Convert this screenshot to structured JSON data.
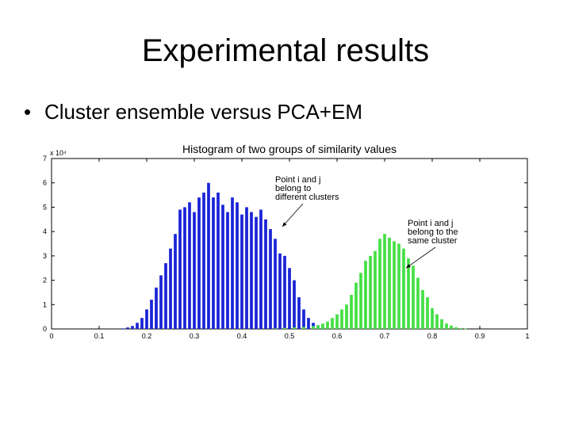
{
  "slide": {
    "title": "Experimental results",
    "bullet": "Cluster ensemble versus PCA+EM"
  },
  "chart_data": {
    "type": "bar",
    "title": "Histogram of two groups of similarity values",
    "xlabel": "",
    "ylabel": "",
    "y_multiplier": "x 10⁴",
    "xlim": [
      0,
      1
    ],
    "ylim": [
      0,
      7
    ],
    "x_ticks": [
      "0",
      "0.1",
      "0.2",
      "0.3",
      "0.4",
      "0.5",
      "0.6",
      "0.7",
      "0.8",
      "0.9",
      "1"
    ],
    "y_ticks": [
      "0",
      "1",
      "2",
      "3",
      "4",
      "5",
      "6",
      "7"
    ],
    "grid": false,
    "bin_width": 0.01,
    "series": [
      {
        "color": "#1a23d6",
        "bins": [
          [
            0.15,
            0.02
          ],
          [
            0.16,
            0.06
          ],
          [
            0.17,
            0.12
          ],
          [
            0.18,
            0.25
          ],
          [
            0.19,
            0.45
          ],
          [
            0.2,
            0.8
          ],
          [
            0.21,
            1.2
          ],
          [
            0.22,
            1.7
          ],
          [
            0.23,
            2.2
          ],
          [
            0.24,
            2.7
          ],
          [
            0.25,
            3.3
          ],
          [
            0.26,
            3.9
          ],
          [
            0.27,
            4.9
          ],
          [
            0.28,
            5.0
          ],
          [
            0.29,
            5.2
          ],
          [
            0.3,
            4.8
          ],
          [
            0.31,
            5.4
          ],
          [
            0.32,
            5.6
          ],
          [
            0.33,
            6.0
          ],
          [
            0.34,
            5.4
          ],
          [
            0.35,
            5.6
          ],
          [
            0.36,
            5.1
          ],
          [
            0.37,
            4.8
          ],
          [
            0.38,
            5.4
          ],
          [
            0.39,
            5.2
          ],
          [
            0.4,
            4.7
          ],
          [
            0.41,
            5.0
          ],
          [
            0.42,
            4.8
          ],
          [
            0.43,
            4.6
          ],
          [
            0.44,
            4.9
          ],
          [
            0.45,
            4.5
          ],
          [
            0.46,
            4.1
          ],
          [
            0.47,
            3.7
          ],
          [
            0.48,
            3.1
          ],
          [
            0.49,
            3.0
          ],
          [
            0.5,
            2.5
          ],
          [
            0.51,
            2.0
          ],
          [
            0.52,
            1.3
          ],
          [
            0.53,
            0.8
          ],
          [
            0.54,
            0.45
          ],
          [
            0.55,
            0.25
          ],
          [
            0.56,
            0.15
          ],
          [
            0.57,
            0.06
          ]
        ]
      },
      {
        "color": "#44e044",
        "bins": [
          [
            0.47,
            0.02
          ],
          [
            0.49,
            0.04
          ],
          [
            0.51,
            0.06
          ],
          [
            0.53,
            0.08
          ],
          [
            0.55,
            0.12
          ],
          [
            0.56,
            0.15
          ],
          [
            0.57,
            0.22
          ],
          [
            0.58,
            0.3
          ],
          [
            0.59,
            0.45
          ],
          [
            0.6,
            0.6
          ],
          [
            0.61,
            0.8
          ],
          [
            0.62,
            1.0
          ],
          [
            0.63,
            1.4
          ],
          [
            0.64,
            1.9
          ],
          [
            0.65,
            2.3
          ],
          [
            0.66,
            2.8
          ],
          [
            0.67,
            3.0
          ],
          [
            0.68,
            3.2
          ],
          [
            0.69,
            3.7
          ],
          [
            0.7,
            3.9
          ],
          [
            0.71,
            3.75
          ],
          [
            0.72,
            3.6
          ],
          [
            0.73,
            3.5
          ],
          [
            0.74,
            3.3
          ],
          [
            0.75,
            2.9
          ],
          [
            0.76,
            2.6
          ],
          [
            0.77,
            2.1
          ],
          [
            0.78,
            1.6
          ],
          [
            0.79,
            1.3
          ],
          [
            0.8,
            0.85
          ],
          [
            0.81,
            0.6
          ],
          [
            0.82,
            0.4
          ],
          [
            0.83,
            0.22
          ],
          [
            0.84,
            0.14
          ],
          [
            0.85,
            0.07
          ],
          [
            0.86,
            0.03
          ],
          [
            0.87,
            0.01
          ]
        ]
      }
    ],
    "annotations": [
      {
        "lines": [
          "Point i and j",
          "belong to",
          "different clusters"
        ],
        "arrow_to": [
          0.485,
          4.2
        ]
      },
      {
        "lines": [
          "Point i and j",
          "belong to the",
          "same cluster"
        ],
        "arrow_to": [
          0.745,
          2.5
        ]
      }
    ]
  }
}
